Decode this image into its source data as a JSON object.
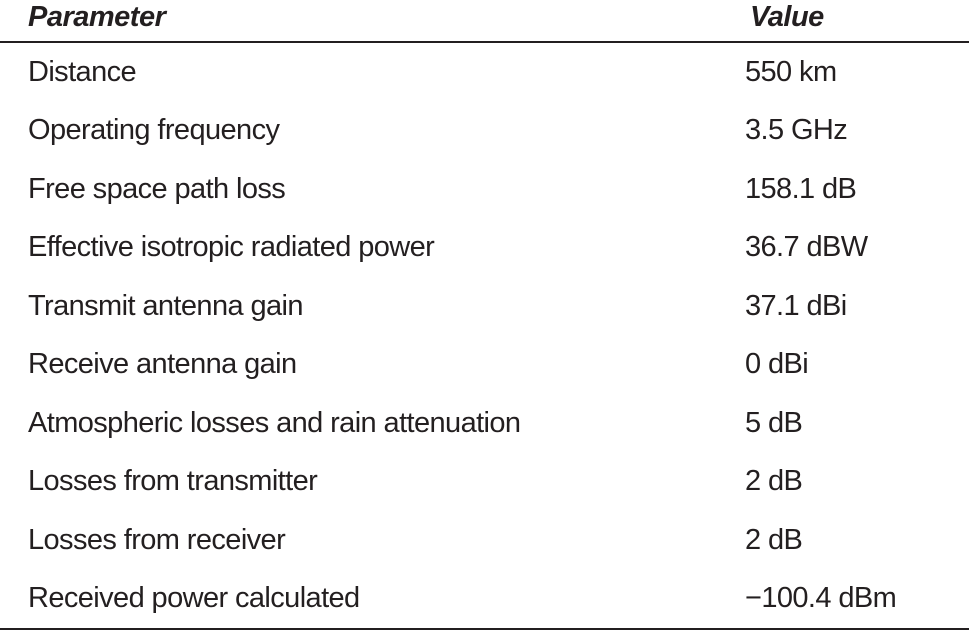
{
  "colors": {
    "text": "#231f20",
    "rule": "#231f20",
    "background": "#ffffff"
  },
  "table": {
    "columns": [
      {
        "label": "Parameter"
      },
      {
        "label": "Value"
      }
    ],
    "rows": [
      {
        "parameter": "Distance",
        "value": "550 km"
      },
      {
        "parameter": "Operating frequency",
        "value": "3.5 GHz"
      },
      {
        "parameter": "Free space path loss",
        "value": "158.1 dB"
      },
      {
        "parameter": "Effective isotropic radiated power",
        "value": "36.7 dBW"
      },
      {
        "parameter": "Transmit antenna gain",
        "value": "37.1 dBi"
      },
      {
        "parameter": "Receive antenna gain",
        "value": "0 dBi"
      },
      {
        "parameter": "Atmospheric losses and rain attenuation",
        "value": "5 dB"
      },
      {
        "parameter": "Losses from transmitter",
        "value": "2 dB"
      },
      {
        "parameter": "Losses from receiver",
        "value": "2 dB"
      },
      {
        "parameter": "Received power calculated",
        "value": "−100.4 dBm"
      }
    ]
  }
}
